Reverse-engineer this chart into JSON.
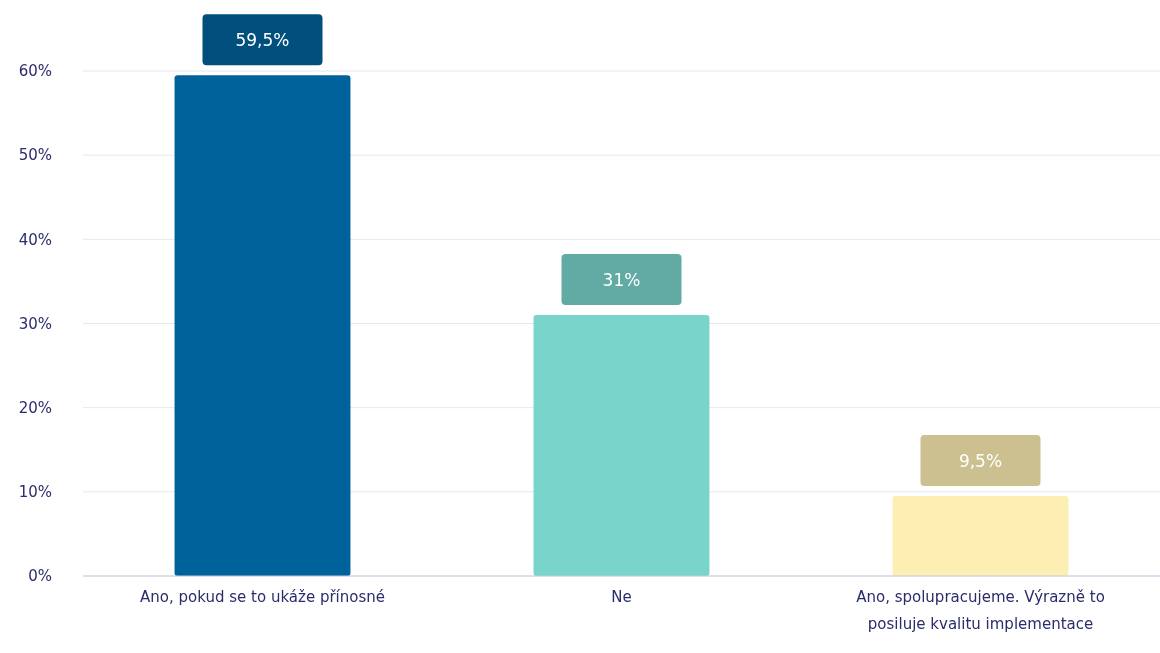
{
  "chart_data": {
    "type": "bar",
    "categories": [
      "Ano, pokud se to ukáže přínosné",
      "Ne",
      "Ano, spolupracujeme. Výrazně to posiluje kvalitu implementace"
    ],
    "values": [
      59.5,
      31,
      9.5
    ],
    "colors": [
      "#00629b",
      "#79d4cb",
      "#fdeeb3"
    ],
    "value_labels": [
      "59,5%",
      "31%",
      "9,5%"
    ],
    "ylim": [
      0,
      60
    ],
    "yticks": [
      {
        "value": 0,
        "label": "0%"
      },
      {
        "value": 10,
        "label": "10%"
      },
      {
        "value": 20,
        "label": "20%"
      },
      {
        "value": 30,
        "label": "30%"
      },
      {
        "value": 40,
        "label": "40%"
      },
      {
        "value": 50,
        "label": "50%"
      },
      {
        "value": 60,
        "label": "60%"
      }
    ],
    "grid": "y"
  }
}
